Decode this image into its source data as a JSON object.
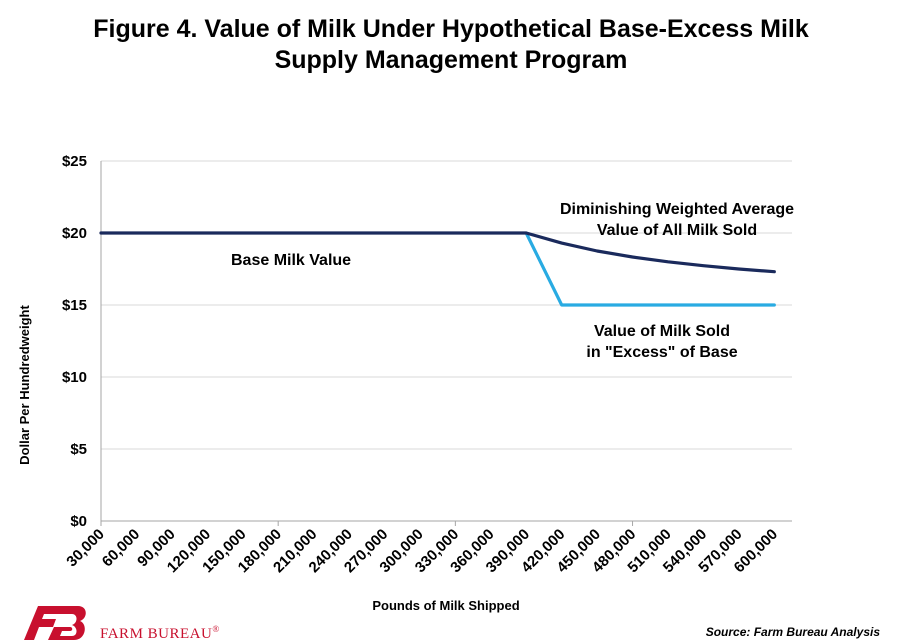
{
  "chart_data": {
    "type": "line",
    "title_line1": "Figure 4. Value of Milk Under Hypothetical Base-Excess Milk",
    "title_line2": "Supply Management Program",
    "xlabel": "Pounds of Milk Shipped",
    "ylabel": "Dollar Per Hundredweight",
    "categories": [
      "30,000",
      "60,000",
      "90,000",
      "120,000",
      "150,000",
      "180,000",
      "210,000",
      "240,000",
      "270,000",
      "300,000",
      "330,000",
      "360,000",
      "390,000",
      "420,000",
      "450,000",
      "480,000",
      "510,000",
      "540,000",
      "570,000",
      "600,000"
    ],
    "y_ticks": [
      "$0",
      "$5",
      "$10",
      "$15",
      "$20",
      "$25"
    ],
    "ylim": [
      0,
      25
    ],
    "grid": true,
    "series": [
      {
        "color": "#1a2a5c",
        "values": [
          20,
          20,
          20,
          20,
          20,
          20,
          20,
          20,
          20,
          20,
          20,
          20,
          20,
          19.3,
          18.75,
          18.33,
          18,
          17.73,
          17.5,
          17.31
        ]
      },
      {
        "color": "#29abe2",
        "values": [
          null,
          null,
          null,
          null,
          null,
          null,
          null,
          null,
          null,
          null,
          null,
          null,
          20,
          15,
          15,
          15,
          15,
          15,
          15,
          15
        ]
      }
    ],
    "annotations": {
      "base": "Base Milk Value",
      "avg_line1": "Diminishing Weighted Average",
      "avg_line2": "Value of All Milk Sold",
      "excess_line1": "Value of Milk Sold",
      "excess_line2": "in \"Excess\" of Base"
    }
  },
  "footer": {
    "brand": "FARM BUREAU",
    "registered": "®",
    "source": "Source: Farm Bureau Analysis",
    "brand_color": "#c8102e"
  }
}
